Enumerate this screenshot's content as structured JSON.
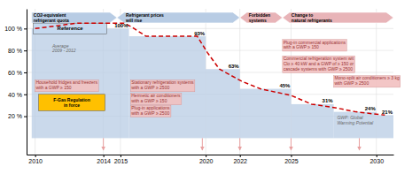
{
  "chart_data": {
    "type": "bar",
    "xlim": [
      2009.5,
      2031.0
    ],
    "ylim": [
      -15,
      118
    ],
    "xticks": [
      2010,
      2014,
      2015,
      2020,
      2022,
      2025,
      2030
    ],
    "yticks": [
      {
        "value": 20,
        "label": "20 %"
      },
      {
        "value": 40,
        "label": "40 %"
      },
      {
        "value": 60,
        "label": "60 %"
      },
      {
        "value": 80,
        "label": "80 %"
      },
      {
        "value": 100,
        "label": "100 %"
      }
    ],
    "grid": true,
    "series": [
      {
        "type": "bar",
        "color": "#b8cce4",
        "data_labels": true,
        "bins": [
          2009.8,
          2015.5,
          2020.0,
          2022.0,
          2025.0,
          2027.5,
          2030.0,
          2031.0
        ],
        "values": [
          100,
          93,
          63,
          45,
          31,
          24,
          21
        ],
        "value_labels": [
          "100%",
          "93%",
          "63%",
          "45%",
          "31%",
          "24%",
          "21%"
        ]
      },
      {
        "type": "line",
        "color": "#cc0000",
        "line_style": "dashed",
        "x": [
          2010.0,
          2012.5,
          2015.2,
          2015.6,
          2016.5,
          2019.5,
          2020.1,
          2020.8,
          2022.1,
          2023.2,
          2025.0,
          2026.2,
          2027.5,
          2028.8,
          2030.5
        ],
        "values": [
          100,
          105,
          105,
          102,
          93,
          93,
          78,
          63,
          52,
          45,
          39,
          31,
          28,
          24,
          21
        ]
      }
    ],
    "boxes": [
      {
        "text": "Reference",
        "x": 2009.9,
        "x2": 2014.2,
        "y": 95,
        "height": 10,
        "color": "#c5d9ef"
      },
      {
        "text": "F-Gas Regulation\nin force",
        "x": 2010.2,
        "x2": 2014.1,
        "y": 25,
        "height": 15,
        "color": "#ffc000"
      }
    ],
    "banners": [
      {
        "text": "CO2-equivalent\nrefrigerant quota",
        "x": 2009.8,
        "x2": 2014.8,
        "y": 110,
        "color": "#b8cce4"
      },
      {
        "text": "Refrigerant prices\nwill rise",
        "x": 2014.8,
        "x2": 2022.0,
        "y": 110,
        "color": "#b8cce4"
      },
      {
        "text": "Forbidden\nsystems",
        "x": 2022.0,
        "x2": 2024.5,
        "y": 110,
        "color": "#e8b4b8"
      },
      {
        "text": "Change to\nnatural refrigerants",
        "x": 2024.5,
        "x2": 2031.0,
        "y": 110,
        "color": "#e8b4b8"
      }
    ],
    "annotations": [
      {
        "text": "Household fridges and freezers\nwith a GWP ≥ 150",
        "x": 2010.0,
        "y": 53,
        "color": "#f2c0c0"
      },
      {
        "text": "Stationary refrigeration systems\nwith a GWP ≥ 2500",
        "x": 2015.6,
        "y": 53,
        "color": "#f2c0c0"
      },
      {
        "text": "Hermetic air conditioners\nwith a GWP ≥ 150",
        "x": 2015.6,
        "y": 41,
        "color": "#f2c0c0"
      },
      {
        "text": "Plug-in applications\nwith a GWP ≥ 2500",
        "x": 2015.6,
        "y": 30,
        "color": "#f2c0c0"
      },
      {
        "text": "Plug-in commercial applications\nwith a GWP ≥ 150",
        "x": 2024.5,
        "y": 90,
        "color": "#f2c0c0"
      },
      {
        "text": "Commercial refrigeration system wit\nClo ≥ 40 kW and a GWP of ≥ 150 or\ncascade systems with GWP ≥ 2500",
        "x": 2024.5,
        "y": 75,
        "color": "#f2c0c0"
      },
      {
        "text": "Mono-split air conditioners ≥ 3 kg\nwith GWP ≥ 2500",
        "x": 2027.5,
        "y": 57,
        "color": "#f2c0c0"
      }
    ],
    "notes": [
      {
        "text": "Average\n2009 - 2012",
        "x": 2011.0,
        "y": 82
      },
      {
        "text": "GWP: Global\nWarming Potential",
        "x": 2027.7,
        "y": 16
      }
    ],
    "arrows": {
      "x": [
        2014.0,
        2019.8,
        2022.0,
        2025.0,
        2029.0
      ],
      "y0": 0,
      "y1": -11,
      "color": "#e8a0a0"
    }
  }
}
